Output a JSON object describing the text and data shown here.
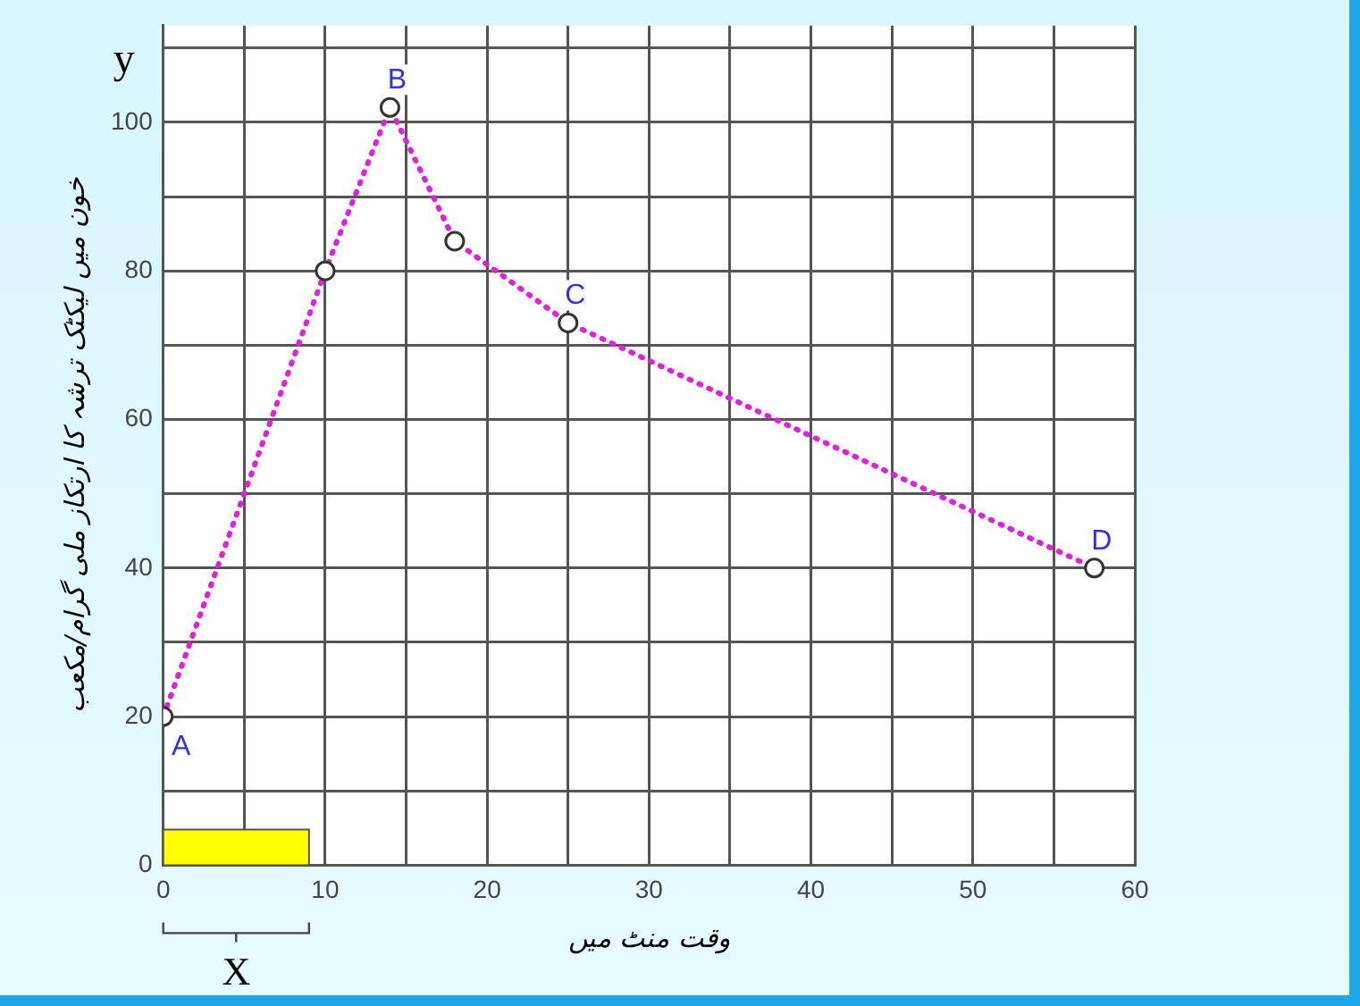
{
  "chart_data": {
    "type": "line",
    "xlabel": "وقت منٹ میں",
    "ylabel": "خون میں لیکٹک ترشہ کا ارتکاز ملی گرام/مکعب",
    "x": [
      0,
      10,
      14,
      18,
      25,
      57.5
    ],
    "series": [
      {
        "color": "#e020e0",
        "values": [
          20,
          80,
          102,
          84,
          73,
          40
        ]
      }
    ],
    "xlim": [
      0,
      60
    ],
    "xticks": [
      0,
      {
        "value": 5,
        "label": null
      },
      10,
      {
        "value": 15,
        "label": null
      },
      20,
      {
        "value": 25,
        "label": null
      },
      30,
      {
        "value": 35,
        "label": null
      },
      40,
      {
        "value": 45,
        "label": null
      },
      50,
      {
        "value": 55,
        "label": null
      },
      60
    ],
    "ylim": [
      0,
      113
    ],
    "yticks": [
      0,
      {
        "value": 10,
        "label": null
      },
      20,
      {
        "value": 30,
        "label": null
      },
      40,
      {
        "value": 50,
        "label": null
      },
      60,
      {
        "value": 70,
        "label": null
      },
      80,
      {
        "value": 90,
        "label": null
      },
      100,
      {
        "value": 110,
        "label": null
      }
    ],
    "grid": true,
    "legend": false,
    "marker": "circle",
    "line_style": "dotted",
    "bands": [
      {
        "axis": "x",
        "from": 0,
        "to": 9,
        "label": "X",
        "color": "#ffff00"
      }
    ],
    "annotations": [
      "y",
      {
        "text": "A",
        "x": 0,
        "y": 20
      },
      {
        "text": "B",
        "x": 14,
        "y": 102
      },
      {
        "text": "C",
        "x": 25,
        "y": 73
      },
      {
        "text": "D",
        "x": 57.5,
        "y": 40
      }
    ]
  }
}
